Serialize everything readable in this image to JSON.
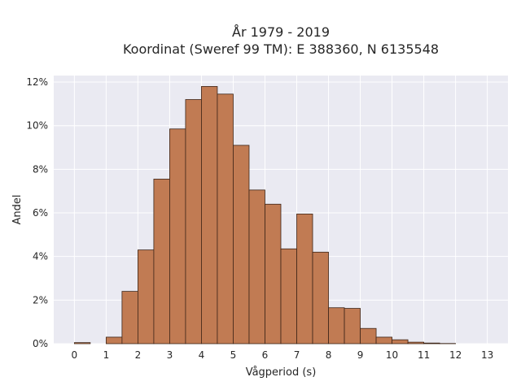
{
  "chart_data": {
    "type": "bar",
    "title_lines": [
      "År 1979 - 2019",
      "Koordinat (Sweref 99 TM): E 388360, N 6135548"
    ],
    "xlabel": "Vågperiod (s)",
    "ylabel": "Andel",
    "bin_width": 0.5,
    "bins": [
      {
        "x": 0.0,
        "value": 0.05
      },
      {
        "x": 0.5,
        "value": 0.0
      },
      {
        "x": 1.0,
        "value": 0.3
      },
      {
        "x": 1.5,
        "value": 2.4
      },
      {
        "x": 2.0,
        "value": 4.3
      },
      {
        "x": 2.5,
        "value": 7.55
      },
      {
        "x": 3.0,
        "value": 9.85
      },
      {
        "x": 3.5,
        "value": 11.2
      },
      {
        "x": 4.0,
        "value": 11.8
      },
      {
        "x": 4.5,
        "value": 11.45
      },
      {
        "x": 5.0,
        "value": 9.1
      },
      {
        "x": 5.5,
        "value": 7.05
      },
      {
        "x": 6.0,
        "value": 6.4
      },
      {
        "x": 6.5,
        "value": 4.35
      },
      {
        "x": 7.0,
        "value": 5.95
      },
      {
        "x": 7.5,
        "value": 4.2
      },
      {
        "x": 8.0,
        "value": 1.65
      },
      {
        "x": 8.5,
        "value": 1.62
      },
      {
        "x": 9.0,
        "value": 0.7
      },
      {
        "x": 9.5,
        "value": 0.3
      },
      {
        "x": 10.0,
        "value": 0.18
      },
      {
        "x": 10.5,
        "value": 0.07
      },
      {
        "x": 11.0,
        "value": 0.03
      },
      {
        "x": 11.5,
        "value": 0.01
      }
    ],
    "xticks": [
      "0",
      "1",
      "2",
      "3",
      "4",
      "5",
      "6",
      "7",
      "8",
      "9",
      "10",
      "11",
      "12",
      "13"
    ],
    "yticks": [
      "0%",
      "2%",
      "4%",
      "6%",
      "8%",
      "10%",
      "12%"
    ],
    "xlim": [
      -0.65,
      13.65
    ],
    "ylim": [
      0,
      12.3
    ],
    "grid": true,
    "bar_color": "#c17b53",
    "edge_color": "#3d2518",
    "background_color": "#eaeaf2"
  }
}
